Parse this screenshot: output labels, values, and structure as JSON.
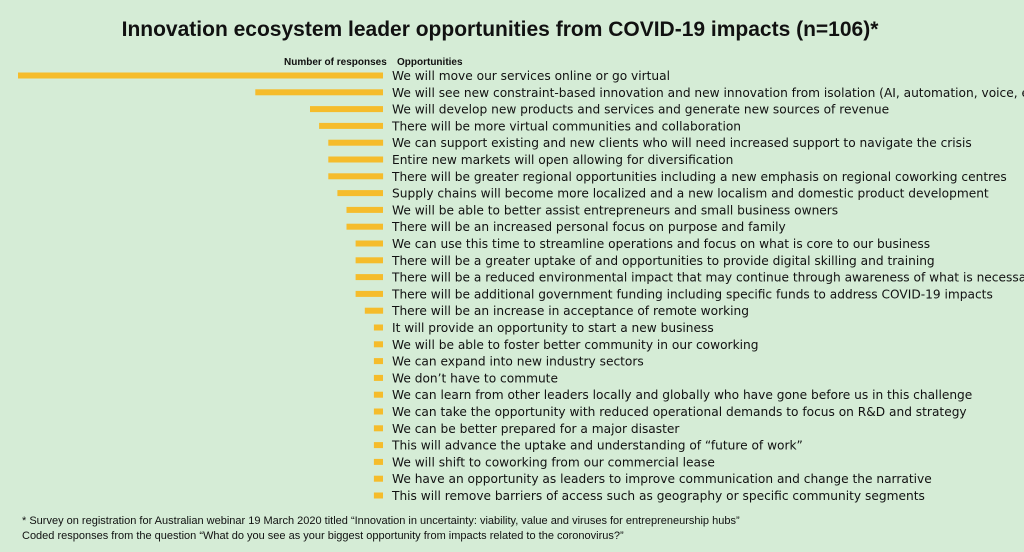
{
  "chart_data": {
    "type": "bar",
    "orientation": "horizontal-left",
    "title": "Innovation ecosystem leader opportunities from COVID-19 impacts (n=106)*",
    "value_header": "Number of responses",
    "category_header": "Opportunities",
    "bar_color": "#f5bc2b",
    "xlim": [
      0,
      40
    ],
    "categories": [
      "We will move our services online or go virtual",
      "We will see new constraint-based innovation and new innovation from isolation (AI, automation, voice, etc.)",
      "We will develop new products and services and generate new sources of revenue",
      "There will be more virtual communities and collaboration",
      "We can support existing and new clients who will need increased support to navigate the crisis",
      "Entire new markets will open allowing for diversification",
      "There will be greater regional opportunities including a new emphasis on regional coworking centres",
      "Supply chains will become more localized and a new localism and domestic product development",
      "We will be able to better assist entrepreneurs and small business owners",
      "There will be an increased personal focus on purpose and family",
      "We can use this time to streamline operations and focus on what is core to our business",
      "There will be a greater uptake of and opportunities to provide digital skilling and training",
      "There will be a reduced environmental impact that may continue through awareness of what is necessary",
      "There will be additional government funding including specific funds to address COVID-19 impacts",
      "There will be an increase in acceptance of remote working",
      "It will provide an opportunity to start a new business",
      "We will be able to foster better community in our coworking",
      "We can expand into new industry sectors",
      "We don’t have to commute",
      "We can learn from other leaders locally and globally who have gone before us in this challenge",
      "We can take the opportunity with reduced operational demands to focus on R&D and strategy",
      "We can be better prepared for a major disaster",
      "This will advance the uptake and understanding of “future of work”",
      "We will shift to coworking from our commercial lease",
      "We have an opportunity as leaders to improve communication and change the narrative",
      "This will remove barriers of access such as geography or specific community segments"
    ],
    "values": [
      40,
      14,
      8,
      7,
      6,
      6,
      6,
      5,
      4,
      4,
      3,
      3,
      3,
      3,
      2,
      1,
      1,
      1,
      1,
      1,
      1,
      1,
      1,
      1,
      1,
      1
    ]
  },
  "footnotes": {
    "line1": "* Survey on registration for Australian webinar 19 March 2020  titled “Innovation in uncertainty: viability, value and viruses for entrepreneurship hubs”",
    "line2": "Coded responses from the question “What do you see as your biggest opportunity from impacts related to the coronovirus?”"
  }
}
